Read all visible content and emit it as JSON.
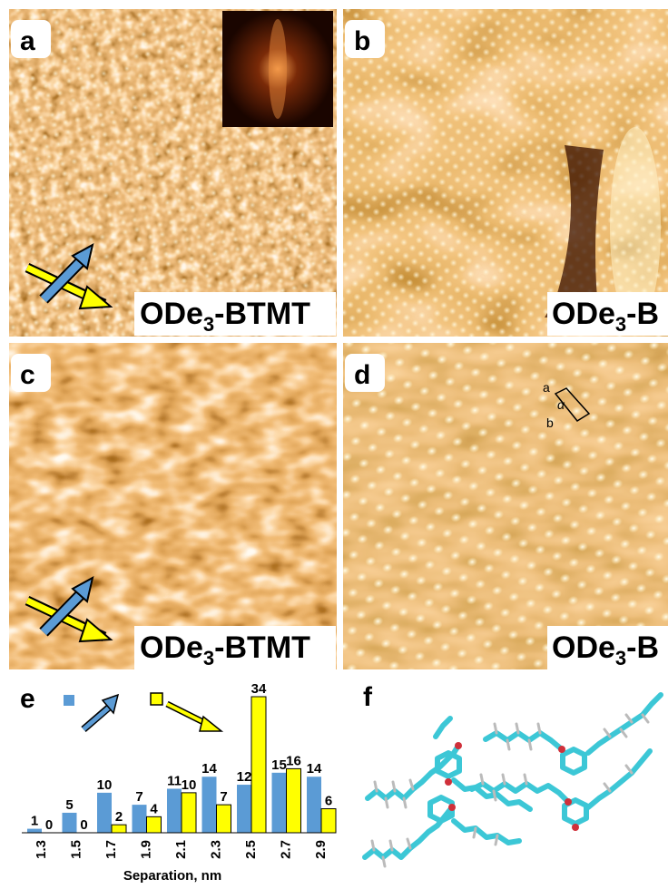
{
  "panels": [
    {
      "label": "a",
      "caption": {
        "main": "ODe",
        "sub": "3",
        "rest": "-BTMT"
      }
    },
    {
      "label": "b",
      "caption": {
        "main": "ODe",
        "sub": "3",
        "rest": "-B"
      }
    },
    {
      "label": "c",
      "caption": {
        "main": "ODe",
        "sub": "3",
        "rest": "-BTMT"
      }
    },
    {
      "label": "d",
      "caption": {
        "main": "ODe",
        "sub": "3",
        "rest": "-B"
      },
      "unit_cell": {
        "a": "a",
        "alpha": "α",
        "b": "b"
      }
    },
    {
      "label": "e"
    },
    {
      "label": "f"
    }
  ],
  "chart_data": {
    "type": "bar",
    "categories": [
      "1.3",
      "1.5",
      "1.7",
      "1.9",
      "2.1",
      "2.3",
      "2.5",
      "2.7",
      "2.9"
    ],
    "series": [
      {
        "color": "#5b9bd5",
        "values": [
          1,
          5,
          10,
          7,
          11,
          14,
          12,
          15,
          14
        ]
      },
      {
        "color": "#ffff00",
        "values": [
          0,
          0,
          2,
          4,
          10,
          7,
          34,
          16,
          6
        ]
      }
    ],
    "x_label": "Separation, nm"
  }
}
